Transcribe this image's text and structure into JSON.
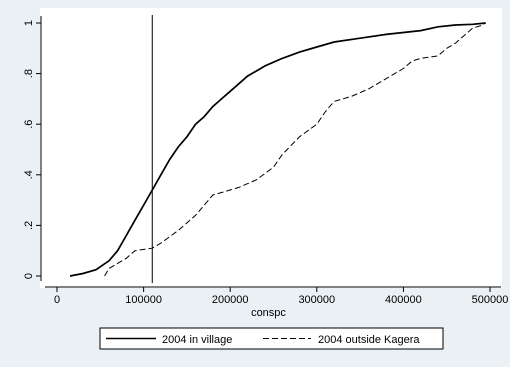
{
  "chart_data": {
    "type": "line",
    "xlabel": "conspc",
    "ylabel": "",
    "xlim": [
      0,
      500000
    ],
    "ylim": [
      0,
      1
    ],
    "x_ticks": [
      {
        "value": 0,
        "label": "0"
      },
      {
        "value": 100000,
        "label": "100000"
      },
      {
        "value": 200000,
        "label": "200000"
      },
      {
        "value": 300000,
        "label": "300000"
      },
      {
        "value": 400000,
        "label": "400000"
      },
      {
        "value": 500000,
        "label": "500000"
      }
    ],
    "y_ticks": [
      {
        "value": 0,
        "label": "0"
      },
      {
        "value": 0.2,
        "label": ".2"
      },
      {
        "value": 0.4,
        "label": ".4"
      },
      {
        "value": 0.6,
        "label": ".6"
      },
      {
        "value": 0.8,
        "label": ".8"
      },
      {
        "value": 1,
        "label": "1"
      }
    ],
    "grid": false,
    "legend_position": "bottom",
    "reference_line_x": 110000,
    "series": [
      {
        "name": "2004 in village",
        "style": "solid",
        "color": "#000000",
        "points": [
          [
            15000,
            0.0
          ],
          [
            30000,
            0.01
          ],
          [
            45000,
            0.025
          ],
          [
            60000,
            0.06
          ],
          [
            70000,
            0.1
          ],
          [
            80000,
            0.16
          ],
          [
            90000,
            0.22
          ],
          [
            100000,
            0.28
          ],
          [
            110000,
            0.34
          ],
          [
            120000,
            0.4
          ],
          [
            130000,
            0.46
          ],
          [
            140000,
            0.51
          ],
          [
            150000,
            0.55
          ],
          [
            160000,
            0.6
          ],
          [
            170000,
            0.63
          ],
          [
            180000,
            0.67
          ],
          [
            190000,
            0.7
          ],
          [
            200000,
            0.73
          ],
          [
            210000,
            0.76
          ],
          [
            220000,
            0.79
          ],
          [
            230000,
            0.81
          ],
          [
            240000,
            0.83
          ],
          [
            250000,
            0.845
          ],
          [
            260000,
            0.86
          ],
          [
            280000,
            0.885
          ],
          [
            300000,
            0.905
          ],
          [
            320000,
            0.925
          ],
          [
            350000,
            0.94
          ],
          [
            380000,
            0.955
          ],
          [
            420000,
            0.97
          ],
          [
            440000,
            0.985
          ],
          [
            460000,
            0.992
          ],
          [
            480000,
            0.995
          ],
          [
            495000,
            1.0
          ]
        ]
      },
      {
        "name": "2004 outside Kagera",
        "style": "dashed",
        "color": "#000000",
        "points": [
          [
            55000,
            0.0
          ],
          [
            60000,
            0.03
          ],
          [
            70000,
            0.05
          ],
          [
            80000,
            0.07
          ],
          [
            90000,
            0.1
          ],
          [
            110000,
            0.11
          ],
          [
            120000,
            0.13
          ],
          [
            140000,
            0.18
          ],
          [
            160000,
            0.24
          ],
          [
            170000,
            0.28
          ],
          [
            180000,
            0.32
          ],
          [
            200000,
            0.34
          ],
          [
            210000,
            0.35
          ],
          [
            230000,
            0.38
          ],
          [
            250000,
            0.43
          ],
          [
            260000,
            0.48
          ],
          [
            280000,
            0.55
          ],
          [
            300000,
            0.6
          ],
          [
            310000,
            0.65
          ],
          [
            320000,
            0.69
          ],
          [
            340000,
            0.71
          ],
          [
            360000,
            0.74
          ],
          [
            380000,
            0.78
          ],
          [
            390000,
            0.8
          ],
          [
            400000,
            0.82
          ],
          [
            410000,
            0.85
          ],
          [
            420000,
            0.86
          ],
          [
            440000,
            0.87
          ],
          [
            450000,
            0.9
          ],
          [
            460000,
            0.92
          ],
          [
            470000,
            0.95
          ],
          [
            480000,
            0.98
          ],
          [
            490000,
            0.99
          ],
          [
            495000,
            1.0
          ]
        ]
      }
    ]
  }
}
